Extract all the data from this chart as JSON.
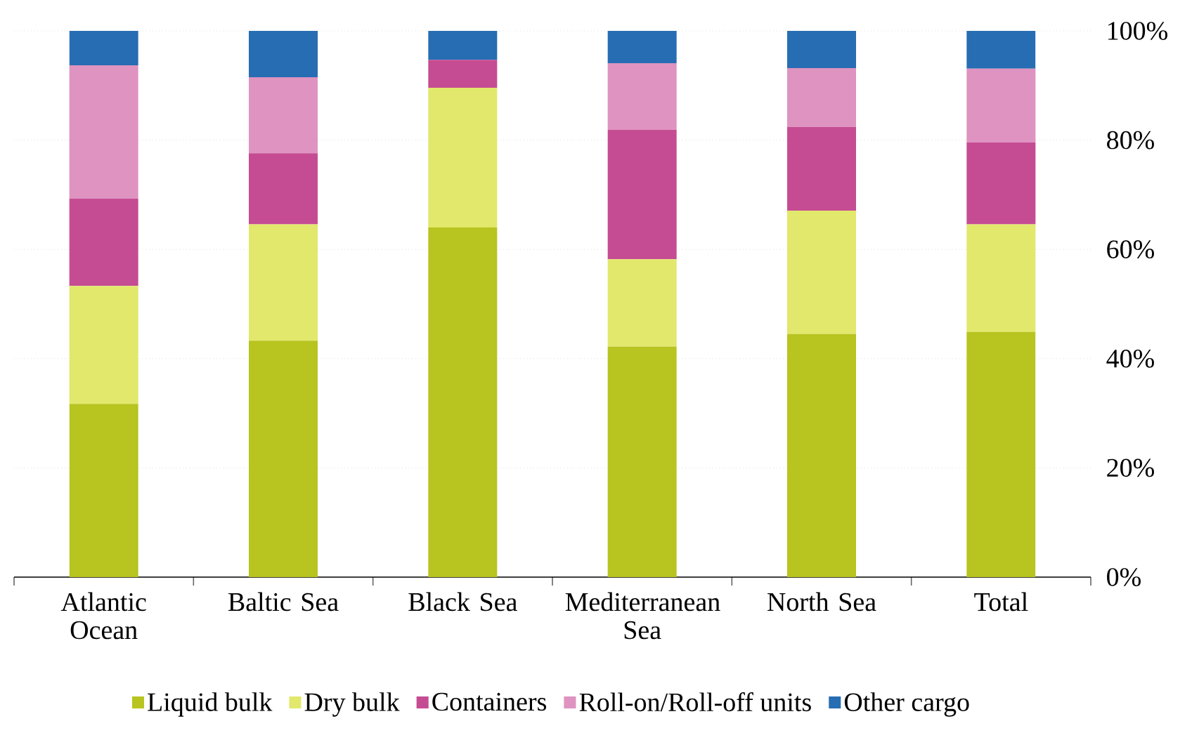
{
  "chart_data": {
    "type": "bar",
    "stacked": true,
    "categories": [
      "Atlantic Ocean",
      "Baltic Sea",
      "Black Sea",
      "Mediterranean Sea",
      "North Sea",
      "Total"
    ],
    "series": [
      {
        "name": "Liquid bulk",
        "color": "#b8c41f",
        "values": [
          31.7,
          43.3,
          64.0,
          42.2,
          44.5,
          44.9
        ]
      },
      {
        "name": "Dry bulk",
        "color": "#e1e86c",
        "values": [
          21.6,
          21.3,
          25.6,
          16.0,
          22.6,
          19.7
        ]
      },
      {
        "name": "Containers",
        "color": "#c54c93",
        "values": [
          16.0,
          13.0,
          5.1,
          23.7,
          15.3,
          15.0
        ]
      },
      {
        "name": "Roll-on/Roll-off units",
        "color": "#df93c0",
        "values": [
          24.4,
          13.9,
          0,
          12.2,
          10.8,
          13.5
        ]
      },
      {
        "name": "Other cargo",
        "color": "#276db3",
        "values": [
          6.3,
          8.5,
          5.3,
          5.9,
          6.8,
          6.9
        ]
      }
    ],
    "ylim": [
      0,
      100
    ],
    "yticks": [
      {
        "value": 0,
        "label": "0%"
      },
      {
        "value": 20,
        "label": "20%"
      },
      {
        "value": 40,
        "label": "40%"
      },
      {
        "value": 60,
        "label": "60%"
      },
      {
        "value": 80,
        "label": "80%"
      },
      {
        "value": 100,
        "label": "100%"
      }
    ],
    "grid": "y",
    "legend": "bottom"
  }
}
